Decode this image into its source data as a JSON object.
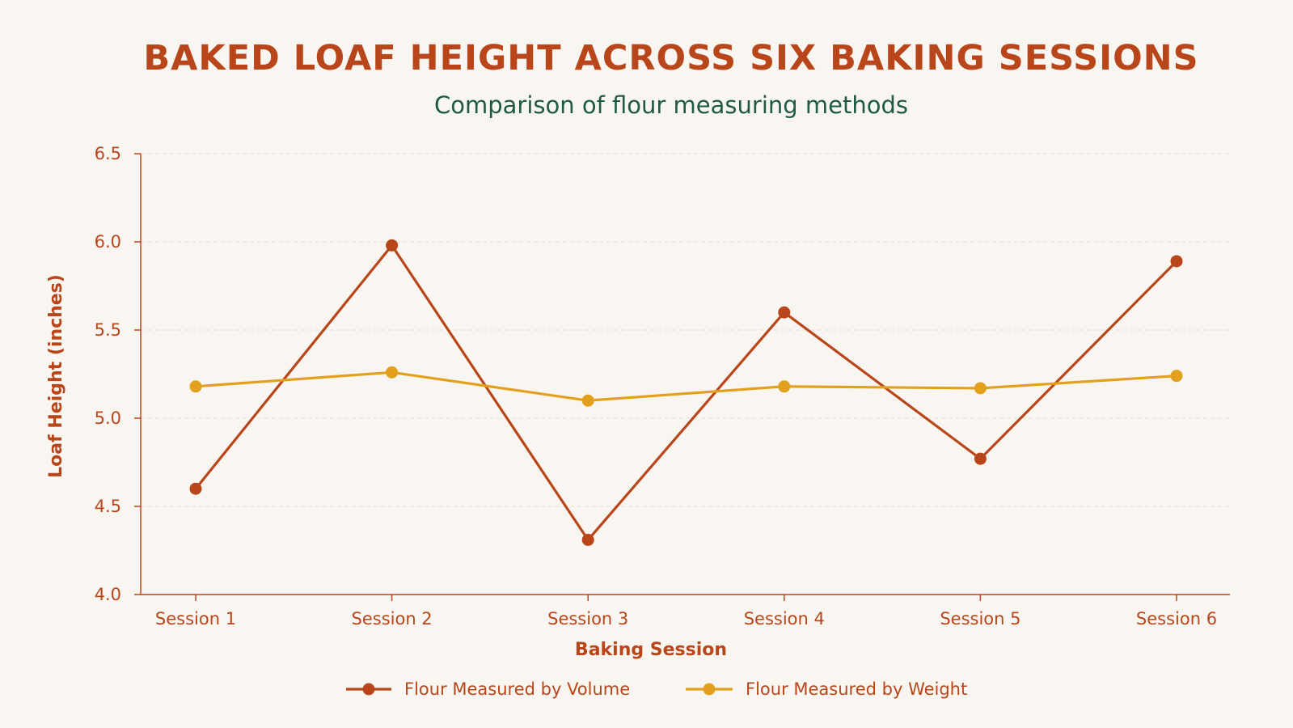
{
  "chart_data": {
    "type": "line",
    "title": "BAKED LOAF HEIGHT ACROSS SIX BAKING SESSIONS",
    "subtitle": "Comparison of flour measuring methods",
    "xlabel": "Baking Session",
    "ylabel": "Loaf Height (inches)",
    "categories": [
      "Session 1",
      "Session 2",
      "Session 3",
      "Session 4",
      "Session 5",
      "Session 6"
    ],
    "ylim": [
      4.0,
      6.5
    ],
    "yticks": [
      "4.0",
      "4.5",
      "5.0",
      "5.5",
      "6.0",
      "6.5"
    ],
    "grid": true,
    "legend_position": "bottom",
    "series": [
      {
        "name": "Flour Measured by Volume",
        "color": "#b8461a",
        "values": [
          4.6,
          5.98,
          4.31,
          5.6,
          4.77,
          5.89
        ]
      },
      {
        "name": "Flour Measured by Weight",
        "color": "#e3a01c",
        "values": [
          5.18,
          5.26,
          5.1,
          5.18,
          5.17,
          5.24
        ]
      }
    ]
  }
}
